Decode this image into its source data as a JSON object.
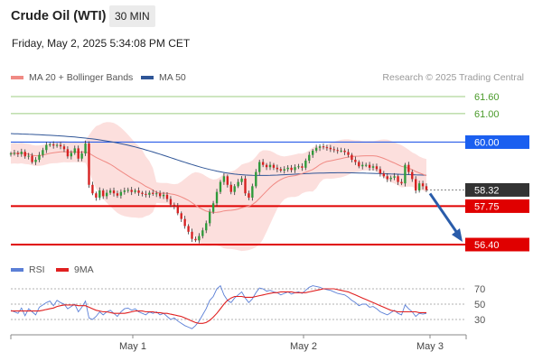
{
  "header": {
    "title": "Crude Oil (WTI)",
    "timeframe": "30 MIN",
    "timestamp": "Friday, May 2, 2025 5:34:08 PM CET"
  },
  "legend_main": [
    {
      "label": "MA 20 + Bollinger Bands",
      "color": "#f08a84"
    },
    {
      "label": "MA 50",
      "color": "#2f5597"
    }
  ],
  "legend_rsi": [
    {
      "label": "RSI",
      "color": "#5b7fd6"
    },
    {
      "label": "9MA",
      "color": "#e02020"
    }
  ],
  "credit": "Research © 2025 Trading Central",
  "chart_data": [
    {
      "type": "candlestick",
      "title": "",
      "ylim": [
        56.2,
        61.8
      ],
      "x_ticks": [
        "May 1",
        "May 2",
        "May 3"
      ],
      "levels": [
        {
          "value": 61.6,
          "label": "61.60",
          "style": "green-line"
        },
        {
          "value": 61.0,
          "label": "61.00",
          "style": "green-line"
        },
        {
          "value": 60.0,
          "label": "60.00",
          "style": "blue-resistance",
          "color": "#1a5ff0"
        },
        {
          "value": 58.32,
          "label": "58.32",
          "style": "last-price",
          "color": "#333333"
        },
        {
          "value": 57.75,
          "label": "57.75",
          "style": "red-support",
          "color": "#e00000"
        },
        {
          "value": 56.4,
          "label": "56.40",
          "style": "red-support",
          "color": "#e00000"
        }
      ],
      "close": [
        59.6,
        59.62,
        59.58,
        59.66,
        59.5,
        59.52,
        59.3,
        59.38,
        59.55,
        59.72,
        59.9,
        59.92,
        59.88,
        59.9,
        59.85,
        59.75,
        59.5,
        59.62,
        59.78,
        59.42,
        59.6,
        59.95,
        58.5,
        58.2,
        58.05,
        58.3,
        58.1,
        58.22,
        58.3,
        58.2,
        58.12,
        58.25,
        58.3,
        58.32,
        58.25,
        58.3,
        58.22,
        58.18,
        58.15,
        58.22,
        58.18,
        58.2,
        58.1,
        58.15,
        58.0,
        57.8,
        57.75,
        57.5,
        57.3,
        57.05,
        56.85,
        56.6,
        56.55,
        56.7,
        56.9,
        57.15,
        57.55,
        57.85,
        58.25,
        58.6,
        58.8,
        58.5,
        58.25,
        58.45,
        58.6,
        58.72,
        58.2,
        58.05,
        58.45,
        58.95,
        59.3,
        59.2,
        59.12,
        59.2,
        59.1,
        59.05,
        59.0,
        59.05,
        59.1,
        59.02,
        59.12,
        59.15,
        59.1,
        59.35,
        59.55,
        59.7,
        59.8,
        59.85,
        59.82,
        59.8,
        59.75,
        59.72,
        59.7,
        59.7,
        59.65,
        59.55,
        59.38,
        59.3,
        59.15,
        59.2,
        59.2,
        59.1,
        59.15,
        59.05,
        58.9,
        58.8,
        58.7,
        58.75,
        58.8,
        58.6,
        58.55,
        59.2,
        58.95,
        58.7,
        58.3,
        58.55,
        58.45,
        58.32
      ],
      "ma50_start_end": [
        60.3,
        58.88
      ],
      "ma20": "follows price midline",
      "bollinger": "shaded band around MA20",
      "projection": {
        "from": 58.32,
        "to": 56.4,
        "direction": "down",
        "color": "#2a5caa"
      }
    },
    {
      "type": "line",
      "title": "",
      "ylim": [
        15,
        85
      ],
      "y_ticks": [
        70,
        50,
        30
      ],
      "x_ticks": [
        "May 1",
        "May 2",
        "May 3"
      ],
      "series": [
        {
          "name": "RSI",
          "color": "#5b7fd6",
          "values": [
            42,
            40,
            38,
            45,
            35,
            44,
            40,
            36,
            46,
            49,
            52,
            54,
            48,
            55,
            52,
            50,
            44,
            47,
            50,
            40,
            46,
            54,
            32,
            30,
            34,
            40,
            36,
            40,
            42,
            38,
            34,
            40,
            44,
            45,
            42,
            44,
            40,
            38,
            36,
            40,
            38,
            40,
            36,
            38,
            34,
            30,
            32,
            28,
            25,
            22,
            20,
            18,
            22,
            28,
            36,
            44,
            55,
            60,
            70,
            74,
            62,
            55,
            52,
            58,
            62,
            66,
            58,
            52,
            57,
            65,
            71,
            70,
            67,
            68,
            66,
            65,
            62,
            64,
            66,
            63,
            65,
            66,
            64,
            68,
            72,
            74,
            73,
            72,
            70,
            69,
            68,
            66,
            64,
            63,
            62,
            59,
            55,
            52,
            48,
            50,
            50,
            46,
            47,
            44,
            40,
            38,
            36,
            39,
            42,
            38,
            36,
            49,
            44,
            40,
            34,
            38,
            37,
            38
          ]
        },
        {
          "name": "9MA",
          "color": "#e02020",
          "values": [
            41,
            41,
            41,
            41,
            41,
            41,
            41,
            41,
            41,
            42,
            43,
            44,
            45,
            47,
            48,
            49,
            49,
            49,
            49,
            48,
            48,
            48,
            46,
            44,
            42,
            41,
            40,
            40,
            39,
            38,
            38,
            38,
            38,
            39,
            40,
            41,
            41,
            41,
            40,
            40,
            40,
            39,
            39,
            38,
            38,
            37,
            36,
            35,
            34,
            32,
            30,
            28,
            26,
            25,
            25,
            26,
            29,
            33,
            38,
            44,
            50,
            55,
            58,
            60,
            60,
            60,
            59,
            59,
            59,
            60,
            61,
            62,
            63,
            64,
            65,
            65,
            66,
            66,
            66,
            66,
            65,
            65,
            65,
            65,
            66,
            67,
            68,
            69,
            70,
            70,
            70,
            70,
            69,
            68,
            67,
            66,
            64,
            62,
            60,
            58,
            56,
            54,
            52,
            50,
            48,
            46,
            44,
            42,
            41,
            40,
            40,
            40,
            40,
            40,
            40,
            39,
            39,
            39
          ]
        }
      ]
    }
  ]
}
